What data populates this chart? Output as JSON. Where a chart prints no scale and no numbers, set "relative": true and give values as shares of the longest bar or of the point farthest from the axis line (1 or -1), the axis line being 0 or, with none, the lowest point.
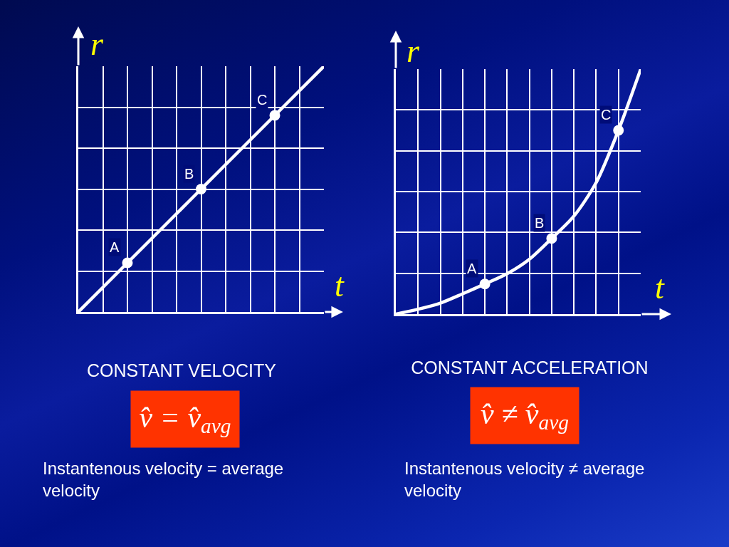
{
  "chart_data": [
    {
      "type": "line",
      "title": "CONSTANT VELOCITY",
      "xlabel": "t",
      "ylabel": "r",
      "relative": true,
      "grid": true,
      "categories": [
        null,
        null,
        null,
        null,
        null,
        null,
        null,
        null,
        null,
        null,
        null
      ],
      "series": [
        {
          "color": "#ffffff",
          "values": [
            0,
            0.1,
            0.2,
            0.3,
            0.4,
            0.5,
            0.6,
            0.7,
            0.8,
            0.9,
            1
          ]
        },
        {
          "marker": "circle",
          "color": "#ffffff",
          "values": [
            null,
            null,
            0.2,
            null,
            null,
            0.5,
            null,
            null,
            0.8,
            null,
            null
          ]
        }
      ],
      "annotations": [
        "A",
        "B",
        "C",
        "v̂ = v̂$_{avg}$",
        "Instantenous velocity = average velocity"
      ]
    },
    {
      "type": "line",
      "title": "CONSTANT ACCELERATION",
      "xlabel": "t",
      "ylabel": "r",
      "relative": true,
      "grid": true,
      "categories": [
        null,
        null,
        null,
        null,
        null,
        null,
        null,
        null,
        null,
        null,
        null,
        null
      ],
      "series": [
        {
          "color": "#ffffff",
          "values": [
            0,
            0.02,
            0.045,
            0.083,
            0.123,
            0.165,
            0.224,
            0.309,
            0.4,
            0.537,
            0.75,
            1
          ]
        },
        {
          "marker": "circle",
          "color": "#ffffff",
          "values": [
            null,
            null,
            null,
            null,
            0.123,
            null,
            null,
            0.309,
            null,
            null,
            0.75,
            null
          ]
        }
      ],
      "annotations": [
        "A",
        "B",
        "C",
        "v̂ ≠ v̂$_{avg}$",
        "Instantenous velocity ≠ average velocity"
      ]
    }
  ]
}
